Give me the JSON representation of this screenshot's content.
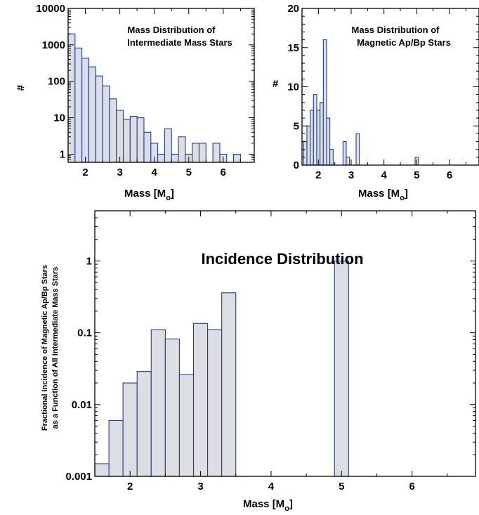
{
  "chart_data": [
    {
      "type": "bar",
      "title": "Mass Distribution of Intermediate Mass Stars",
      "title_lines": [
        "Mass Distribution of",
        "Intermediate Mass Stars"
      ],
      "xlabel": "Mass  [M",
      "xlabel_sub": "o",
      "xlabel_close": "]",
      "ylabel": "#",
      "yscale": "log",
      "xlim": [
        1.5,
        6.9
      ],
      "ylim": [
        0.6,
        10000
      ],
      "bin_width": 0.2,
      "x_ticks": [
        2,
        3,
        4,
        5,
        6
      ],
      "y_ticks": [
        1,
        10,
        100,
        1000,
        10000
      ],
      "bins": [
        {
          "x": 1.6,
          "value": 2000
        },
        {
          "x": 1.8,
          "value": 820
        },
        {
          "x": 2.0,
          "value": 430
        },
        {
          "x": 2.2,
          "value": 250
        },
        {
          "x": 2.4,
          "value": 140
        },
        {
          "x": 2.6,
          "value": 75
        },
        {
          "x": 2.8,
          "value": 33
        },
        {
          "x": 3.0,
          "value": 16
        },
        {
          "x": 3.2,
          "value": 9
        },
        {
          "x": 3.4,
          "value": 11
        },
        {
          "x": 3.6,
          "value": 10
        },
        {
          "x": 3.8,
          "value": 4
        },
        {
          "x": 4.0,
          "value": 2
        },
        {
          "x": 4.2,
          "value": 1
        },
        {
          "x": 4.4,
          "value": 5
        },
        {
          "x": 4.6,
          "value": 1
        },
        {
          "x": 4.8,
          "value": 3
        },
        {
          "x": 5.0,
          "value": 1
        },
        {
          "x": 5.2,
          "value": 2
        },
        {
          "x": 5.4,
          "value": 2
        },
        {
          "x": 5.8,
          "value": 2
        },
        {
          "x": 6.0,
          "value": 1
        },
        {
          "x": 6.4,
          "value": 1
        }
      ]
    },
    {
      "type": "bar",
      "title": "Mass Distribution of Magnetic Ap/Bp Stars",
      "title_lines": [
        "Mass Distribution of",
        "Magnetic Ap/Bp Stars"
      ],
      "xlabel": "Mass  [M",
      "xlabel_sub": "o",
      "xlabel_close": "]",
      "ylabel": "#",
      "yscale": "linear",
      "xlim": [
        1.5,
        6.9
      ],
      "ylim": [
        0,
        20
      ],
      "bin_width": 0.1,
      "x_ticks": [
        2,
        3,
        4,
        5,
        6
      ],
      "y_ticks": [
        0,
        5,
        10,
        15,
        20
      ],
      "bins": [
        {
          "x": 1.6,
          "value": 3
        },
        {
          "x": 1.7,
          "value": 5
        },
        {
          "x": 1.8,
          "value": 7
        },
        {
          "x": 1.9,
          "value": 9
        },
        {
          "x": 2.0,
          "value": 7
        },
        {
          "x": 2.1,
          "value": 8
        },
        {
          "x": 2.2,
          "value": 16
        },
        {
          "x": 2.3,
          "value": 6
        },
        {
          "x": 2.4,
          "value": 2
        },
        {
          "x": 2.8,
          "value": 3
        },
        {
          "x": 2.9,
          "value": 1
        },
        {
          "x": 3.2,
          "value": 4
        },
        {
          "x": 5.0,
          "value": 1
        }
      ]
    },
    {
      "type": "bar",
      "title": "Incidence Distribution",
      "xlabel": "Mass [M",
      "xlabel_sub": "o",
      "xlabel_close": "]",
      "ylabel_lines": [
        "Fractional Incidence of Magnetic Ap/Bp Stars",
        "as a Function of All Intermediate Mass Stars"
      ],
      "yscale": "log",
      "xlim": [
        1.5,
        6.9
      ],
      "ylim": [
        0.001,
        5
      ],
      "bin_width": 0.2,
      "x_ticks": [
        2,
        3,
        4,
        5,
        6
      ],
      "y_ticks": [
        0.001,
        0.01,
        0.1,
        1
      ],
      "y_tick_labels": [
        "0.001",
        "0.01",
        "0.1",
        "1"
      ],
      "bins": [
        {
          "x": 1.6,
          "value": 0.0015
        },
        {
          "x": 1.8,
          "value": 0.006
        },
        {
          "x": 2.0,
          "value": 0.02
        },
        {
          "x": 2.2,
          "value": 0.029
        },
        {
          "x": 2.4,
          "value": 0.11
        },
        {
          "x": 2.6,
          "value": 0.082
        },
        {
          "x": 2.8,
          "value": 0.026
        },
        {
          "x": 3.0,
          "value": 0.135
        },
        {
          "x": 3.2,
          "value": 0.11
        },
        {
          "x": 3.4,
          "value": 0.36
        },
        {
          "x": 5.0,
          "value": 1.0
        }
      ]
    }
  ]
}
